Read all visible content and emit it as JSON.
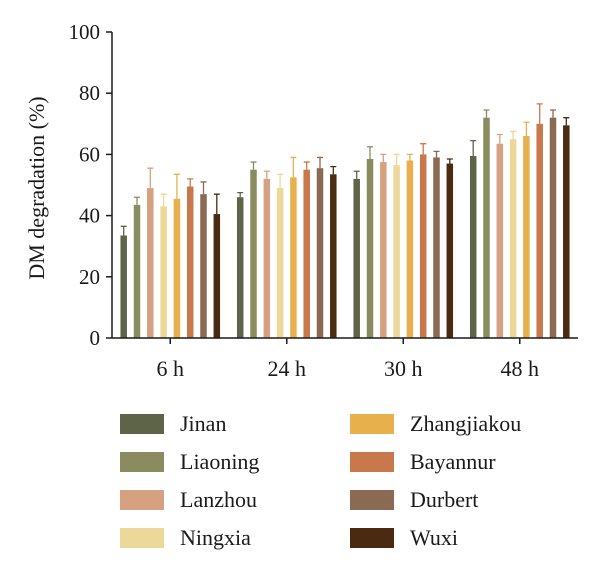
{
  "chart_data": {
    "type": "bar",
    "ylabel": "DM degradation (%)",
    "ylim": [
      0,
      100
    ],
    "yticks": [
      0,
      20,
      40,
      60,
      80,
      100
    ],
    "categories": [
      "6 h",
      "24 h",
      "30 h",
      "48 h"
    ],
    "error_bars": true,
    "legend_position": "bottom",
    "series": [
      {
        "name": "Jinan",
        "color": "#5e6448",
        "values": [
          33.5,
          46,
          52,
          59.5
        ],
        "errors": [
          3,
          1.5,
          2.5,
          5
        ]
      },
      {
        "name": "Liaoning",
        "color": "#8a8c60",
        "values": [
          43.5,
          55,
          58.5,
          72
        ],
        "errors": [
          2.5,
          2.5,
          4,
          2.5
        ]
      },
      {
        "name": "Lanzhou",
        "color": "#d6a180",
        "values": [
          49,
          52,
          57.5,
          63.5
        ],
        "errors": [
          6.5,
          2.5,
          2.5,
          3
        ]
      },
      {
        "name": "Ningxia",
        "color": "#ecd898",
        "values": [
          43,
          49,
          56.5,
          65
        ],
        "errors": [
          4,
          4.5,
          3.5,
          2.5
        ]
      },
      {
        "name": "Zhangjiakou",
        "color": "#e8b04c",
        "values": [
          45.5,
          52.5,
          58,
          66
        ],
        "errors": [
          8,
          6.5,
          2,
          4.5
        ]
      },
      {
        "name": "Bayannur",
        "color": "#c8784a",
        "values": [
          49.5,
          55,
          60,
          70
        ],
        "errors": [
          2.5,
          2.5,
          3.5,
          6.5
        ]
      },
      {
        "name": "Durbert",
        "color": "#8a6a52",
        "values": [
          47,
          55.5,
          59,
          72
        ],
        "errors": [
          4,
          3.5,
          2,
          2.5
        ]
      },
      {
        "name": "Wuxi",
        "color": "#4a2a10",
        "values": [
          40.5,
          53.5,
          57,
          69.5
        ],
        "errors": [
          6.5,
          2.5,
          1.5,
          2.5
        ]
      }
    ]
  }
}
